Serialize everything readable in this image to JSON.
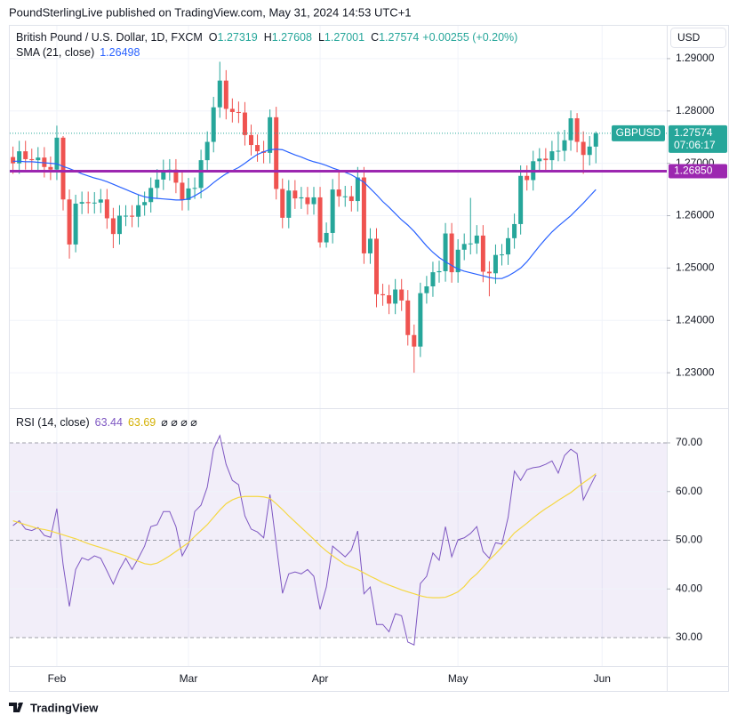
{
  "header": {
    "published": "PoundSterlingLive published on TradingView.com, May 31, 2024 14:53 UTC+1",
    "currency": "USD",
    "brand": "TradingView"
  },
  "chart_data": [
    {
      "type": "candlestick",
      "symbol": "British Pound / U.S. Dollar, 1D, FXCM",
      "ohlc_labels": [
        "O",
        "H",
        "L",
        "C"
      ],
      "change": "+0.00255 (+0.20%)",
      "ticker": "GBPUSD",
      "countdown": "07:06:17",
      "up_color": "#26a69a",
      "down_color": "#ef5350",
      "grid": true,
      "categories": [
        null,
        null,
        null,
        null,
        null,
        null,
        null,
        "Feb",
        null,
        null,
        null,
        null,
        null,
        null,
        null,
        null,
        null,
        null,
        null,
        null,
        null,
        null,
        null,
        null,
        null,
        null,
        null,
        null,
        "Mar",
        null,
        null,
        null,
        null,
        null,
        null,
        null,
        null,
        null,
        null,
        null,
        null,
        null,
        null,
        null,
        null,
        null,
        null,
        null,
        null,
        "Apr",
        null,
        null,
        null,
        null,
        null,
        null,
        null,
        null,
        null,
        null,
        null,
        null,
        null,
        null,
        null,
        null,
        null,
        null,
        null,
        null,
        null,
        "May",
        null,
        null,
        null,
        null,
        null,
        null,
        null,
        null,
        null,
        null,
        null,
        null,
        null,
        null,
        null,
        null,
        null,
        null,
        null,
        null,
        null,
        null,
        "Jun"
      ],
      "open": [
        1.2712,
        1.27,
        1.2723,
        1.2708,
        1.2706,
        1.2711,
        1.2693,
        1.2688,
        1.2749,
        1.2631,
        1.2545,
        1.2623,
        1.2626,
        1.2624,
        1.2625,
        1.2631,
        1.2595,
        1.2565,
        1.26,
        1.26,
        1.2598,
        1.262,
        1.2626,
        1.2653,
        1.2669,
        1.2687,
        1.2688,
        1.2663,
        1.263,
        1.2652,
        1.2653,
        1.2706,
        1.2741,
        1.2807,
        1.2858,
        1.2804,
        1.2798,
        1.2797,
        1.2754,
        1.2735,
        1.2723,
        1.272,
        1.2788,
        1.2651,
        1.2596,
        1.2648,
        1.2633,
        1.2635,
        1.2622,
        1.2635,
        1.2549,
        1.2567,
        1.265,
        1.2637,
        1.2637,
        1.2628,
        1.2673,
        1.2528,
        1.2556,
        1.245,
        1.2448,
        1.2432,
        1.2459,
        1.2438,
        1.2372,
        1.235,
        1.2452,
        1.2465,
        1.2492,
        1.2494,
        1.2566,
        1.2492,
        1.2535,
        1.2546,
        1.2547,
        1.2562,
        1.2493,
        1.249,
        1.2525,
        1.2526,
        1.2557,
        1.2584,
        1.2676,
        1.2668,
        1.2704,
        1.2709,
        1.2706,
        1.2723,
        1.2724,
        1.2744,
        1.2786,
        1.2741,
        1.2716,
        1.27319,
        null
      ],
      "high": [
        1.2732,
        1.2743,
        1.2743,
        1.2728,
        1.2731,
        1.2731,
        1.2713,
        1.2772,
        1.2752,
        1.265,
        1.264,
        1.2646,
        1.2646,
        1.2645,
        1.2651,
        1.2651,
        1.2615,
        1.262,
        1.262,
        1.262,
        1.264,
        1.2646,
        1.2673,
        1.2689,
        1.2707,
        1.2708,
        1.2708,
        1.2683,
        1.2672,
        1.2673,
        1.2726,
        1.2761,
        1.2827,
        1.2894,
        1.2878,
        1.2824,
        1.2818,
        1.2817,
        1.2774,
        1.2755,
        1.2743,
        1.2803,
        1.2808,
        1.2671,
        1.2668,
        1.2668,
        1.2655,
        1.2655,
        1.2655,
        1.2655,
        1.2587,
        1.267,
        1.2684,
        1.2657,
        1.2657,
        1.2693,
        1.2693,
        1.2576,
        1.2576,
        1.247,
        1.2468,
        1.2479,
        1.2479,
        1.2458,
        1.2392,
        1.2472,
        1.2485,
        1.2512,
        1.2514,
        1.2586,
        1.2586,
        1.2555,
        1.2566,
        1.2634,
        1.2582,
        1.2582,
        1.2513,
        1.2545,
        1.2546,
        1.2577,
        1.2604,
        1.2696,
        1.2696,
        1.2724,
        1.2729,
        1.2729,
        1.2743,
        1.2761,
        1.2764,
        1.2801,
        1.2796,
        1.2761,
        1.2752,
        1.27608,
        null
      ],
      "low": [
        1.268,
        1.268,
        1.2688,
        1.2686,
        1.2686,
        1.2673,
        1.2668,
        1.2668,
        1.261,
        1.2518,
        1.253,
        1.2603,
        1.2604,
        1.2604,
        1.2605,
        1.2575,
        1.2538,
        1.2545,
        1.258,
        1.2578,
        1.2578,
        1.26,
        1.2606,
        1.2633,
        1.2649,
        1.2667,
        1.2643,
        1.261,
        1.261,
        1.2632,
        1.2633,
        1.2686,
        1.2721,
        1.2787,
        1.2784,
        1.2778,
        1.2777,
        1.2734,
        1.2715,
        1.2703,
        1.27,
        1.27,
        1.2631,
        1.2576,
        1.2576,
        1.2613,
        1.2613,
        1.2602,
        1.2602,
        1.2539,
        1.2539,
        1.2547,
        1.2617,
        1.2617,
        1.2608,
        1.2608,
        1.2508,
        1.2508,
        1.2425,
        1.2428,
        1.2412,
        1.2412,
        1.2418,
        1.2352,
        1.23,
        1.233,
        1.2432,
        1.2445,
        1.2472,
        1.2474,
        1.2472,
        1.2472,
        1.2515,
        1.2526,
        1.2527,
        1.2473,
        1.2446,
        1.247,
        1.2505,
        1.2506,
        1.2537,
        1.2564,
        1.2648,
        1.2648,
        1.2684,
        1.2686,
        1.2686,
        1.2704,
        1.2704,
        1.2724,
        1.2721,
        1.268,
        1.2696,
        1.27001,
        null
      ],
      "close": [
        1.27,
        1.2723,
        1.2708,
        1.2706,
        1.2711,
        1.2693,
        1.2688,
        1.2749,
        1.2631,
        1.2545,
        1.2623,
        1.2626,
        1.2624,
        1.2625,
        1.2631,
        1.2595,
        1.2565,
        1.26,
        1.26,
        1.2598,
        1.262,
        1.2626,
        1.2653,
        1.2669,
        1.2687,
        1.2688,
        1.2663,
        1.263,
        1.2652,
        1.2653,
        1.2706,
        1.2741,
        1.2807,
        1.2858,
        1.2804,
        1.2798,
        1.2797,
        1.2754,
        1.2735,
        1.2723,
        1.272,
        1.2788,
        1.2651,
        1.2596,
        1.2648,
        1.2633,
        1.2635,
        1.2622,
        1.2635,
        1.2549,
        1.2567,
        1.265,
        1.2637,
        1.2637,
        1.2628,
        1.2673,
        1.2528,
        1.2556,
        1.245,
        1.2448,
        1.2432,
        1.2459,
        1.2438,
        1.2372,
        1.235,
        1.2452,
        1.2465,
        1.2492,
        1.2494,
        1.2566,
        1.2492,
        1.2535,
        1.2546,
        1.2547,
        1.2562,
        1.2493,
        1.249,
        1.2525,
        1.2526,
        1.2557,
        1.2584,
        1.2676,
        1.2668,
        1.2704,
        1.2709,
        1.2706,
        1.2723,
        1.2724,
        1.2744,
        1.2786,
        1.2741,
        1.2716,
        1.2732,
        1.27574,
        null
      ],
      "sma": {
        "name": "SMA (21, close)",
        "color": "#2962ff",
        "values": [
          1.2704,
          1.2704,
          1.2703,
          1.2703,
          1.2702,
          1.2701,
          1.27,
          1.2699,
          1.2694,
          1.269,
          1.2685,
          1.268,
          1.2676,
          1.2672,
          1.2669,
          1.2665,
          1.266,
          1.2655,
          1.265,
          1.2645,
          1.264,
          1.2636,
          1.2634,
          1.2633,
          1.2632,
          1.2631,
          1.263,
          1.263,
          1.2632,
          1.2638,
          1.2645,
          1.2653,
          1.2663,
          1.2672,
          1.268,
          1.2686,
          1.2692,
          1.27,
          1.2709,
          1.2717,
          1.2722,
          1.2726,
          1.2727,
          1.2726,
          1.2721,
          1.2716,
          1.2712,
          1.2707,
          1.2703,
          1.27,
          1.2696,
          1.2691,
          1.2687,
          1.2683,
          1.2678,
          1.2671,
          1.2664,
          1.2652,
          1.264,
          1.2627,
          1.2616,
          1.2604,
          1.2592,
          1.2582,
          1.257,
          1.2556,
          1.2542,
          1.253,
          1.252,
          1.2512,
          1.2505,
          1.2498,
          1.2494,
          1.2491,
          1.2488,
          1.2485,
          1.2482,
          1.248,
          1.248,
          1.2485,
          1.2492,
          1.25,
          1.2512,
          1.2527,
          1.2542,
          1.2556,
          1.2569,
          1.258,
          1.259,
          1.26,
          1.2612,
          1.2624,
          1.2637,
          1.26498,
          null
        ]
      },
      "hline": {
        "value": 1.2685,
        "label": "1.26850",
        "color": "#9c27b0"
      },
      "ylim": [
        1.2234,
        1.2961
      ],
      "yticks": [
        {
          "value": 1.23,
          "label": "1.23000"
        },
        {
          "value": 1.24,
          "label": "1.24000"
        },
        {
          "value": 1.25,
          "label": "1.25000"
        },
        {
          "value": 1.26,
          "label": "1.26000"
        },
        {
          "value": 1.27,
          "label": "1.27000"
        },
        {
          "value": 1.28,
          "label": "1.28000"
        },
        {
          "value": 1.29,
          "label": "1.29000"
        }
      ]
    },
    {
      "type": "line",
      "name": "RSI (14, close)",
      "empty_values": "⌀ ⌀ ⌀ ⌀",
      "band_color": "#7e57c2",
      "series": [
        {
          "color": "#7e57c2",
          "values": [
            53.0,
            54.0,
            52.3,
            52.0,
            52.6,
            51.0,
            50.6,
            56.5,
            45.0,
            36.4,
            44.0,
            46.4,
            45.9,
            46.8,
            46.3,
            43.7,
            41.0,
            44.0,
            46.3,
            44.0,
            46.3,
            48.8,
            52.8,
            53.2,
            55.9,
            55.9,
            52.8,
            46.8,
            49.2,
            55.9,
            57.2,
            60.9,
            68.7,
            71.5,
            65.6,
            62.3,
            61.4,
            55.0,
            52.3,
            51.7,
            50.5,
            59.4,
            49.2,
            39.1,
            43.1,
            43.5,
            43.1,
            44.0,
            42.6,
            35.8,
            40.4,
            48.8,
            47.7,
            46.6,
            48.0,
            51.9,
            39.0,
            40.4,
            32.7,
            32.7,
            31.2,
            34.9,
            34.5,
            29.1,
            28.5,
            41.1,
            42.6,
            47.4,
            45.9,
            52.8,
            46.6,
            50.1,
            50.5,
            51.4,
            52.8,
            47.7,
            46.3,
            49.5,
            49.2,
            54.7,
            64.2,
            62.3,
            64.5,
            64.9,
            65.1,
            65.6,
            66.3,
            63.8,
            67.4,
            68.7,
            67.8,
            58.3,
            60.9,
            63.44,
            null
          ]
        },
        {
          "color": "#f5d742",
          "values": [
            54.0,
            53.6,
            53.2,
            52.8,
            52.4,
            52.2,
            51.9,
            51.5,
            51.1,
            50.7,
            50.3,
            49.8,
            49.3,
            48.9,
            48.5,
            48.1,
            47.6,
            47.2,
            46.8,
            46.2,
            45.7,
            45.2,
            45.0,
            45.3,
            46.0,
            46.8,
            47.7,
            48.6,
            49.5,
            50.8,
            52.0,
            53.2,
            54.7,
            56.2,
            57.5,
            58.3,
            58.8,
            59.0,
            59.0,
            59.0,
            58.9,
            58.6,
            57.5,
            56.3,
            55.0,
            53.8,
            52.6,
            51.4,
            50.2,
            48.9,
            47.8,
            46.8,
            45.9,
            45.0,
            44.5,
            44.0,
            43.3,
            42.6,
            42.0,
            41.3,
            40.8,
            40.3,
            39.8,
            39.4,
            39.0,
            38.6,
            38.3,
            38.2,
            38.2,
            38.3,
            38.8,
            39.4,
            40.5,
            42.0,
            43.1,
            44.5,
            46.0,
            47.2,
            48.6,
            50.0,
            51.5,
            52.5,
            53.5,
            54.6,
            55.6,
            56.5,
            57.3,
            58.2,
            59.0,
            59.8,
            60.8,
            61.8,
            62.7,
            63.69,
            null
          ]
        }
      ],
      "ylim": [
        24.34,
        76.94
      ],
      "yticks": [
        {
          "value": 30,
          "label": "30.00"
        },
        {
          "value": 40,
          "label": "40.00"
        },
        {
          "value": 50,
          "label": "50.00"
        },
        {
          "value": 60,
          "label": "60.00"
        },
        {
          "value": 70,
          "label": "70.00"
        }
      ]
    }
  ]
}
